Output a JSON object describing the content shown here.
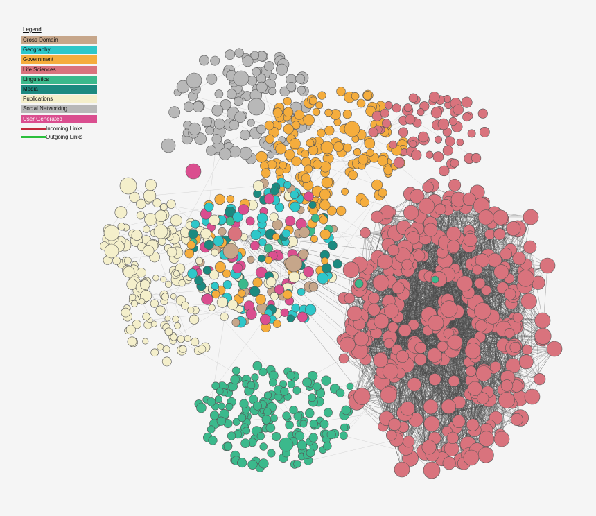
{
  "legend": {
    "title": "Legend",
    "categories": [
      {
        "label": "Cross Domain",
        "color": "#c6a68a",
        "text_color": "#111111"
      },
      {
        "label": "Geography",
        "color": "#2ec7c9",
        "text_color": "#111111"
      },
      {
        "label": "Government",
        "color": "#f5ad3d",
        "text_color": "#111111"
      },
      {
        "label": "Life Sciences",
        "color": "#d9737d",
        "text_color": "#111111"
      },
      {
        "label": "Linguistics",
        "color": "#3bb98c",
        "text_color": "#111111"
      },
      {
        "label": "Media",
        "color": "#1c8a80",
        "text_color": "#111111"
      },
      {
        "label": "Publications",
        "color": "#f4efcb",
        "text_color": "#111111"
      },
      {
        "label": "Social Networking",
        "color": "#b8b8b8",
        "text_color": "#111111"
      },
      {
        "label": "User Generated",
        "color": "#da4e8f",
        "text_color": "#ffffff"
      }
    ],
    "link_types": [
      {
        "label": "Incoming Links",
        "color": "#c22a3c"
      },
      {
        "label": "Outgoing Links",
        "color": "#2cbf3c"
      }
    ]
  },
  "colors": {
    "background": "#f5f5f5",
    "edge_dark": "#4a4a4a",
    "edge_light": "#9a9a9a",
    "node_stroke": "#555555"
  }
}
